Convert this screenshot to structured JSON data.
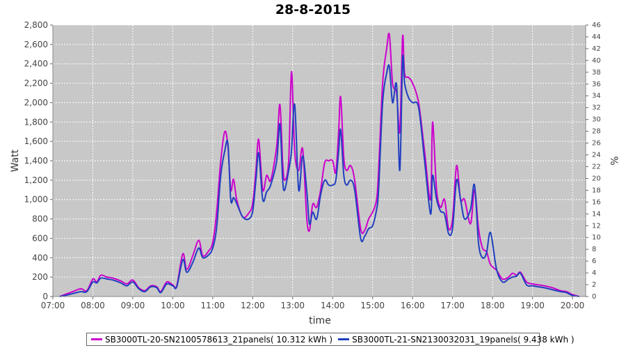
{
  "chart_data": {
    "type": "line",
    "title": "28-8-2015",
    "xlabel": "time",
    "ylabel": "Watt",
    "y2label": "%",
    "ylim": [
      0,
      2800
    ],
    "y2lim": [
      0,
      46
    ],
    "xlim": [
      7.0,
      20.33
    ],
    "grid": true,
    "legend_position": "bottom",
    "x_ticks": [
      "07:00",
      "08:00",
      "09:00",
      "10:00",
      "11:00",
      "12:00",
      "13:00",
      "14:00",
      "15:00",
      "16:00",
      "17:00",
      "18:00",
      "19:00",
      "20:00"
    ],
    "y_ticks": [
      "0",
      "200",
      "400",
      "600",
      "800",
      "1,000",
      "1,200",
      "1,400",
      "1,600",
      "1,800",
      "2,000",
      "2,200",
      "2,400",
      "2,600",
      "2,800"
    ],
    "y2_ticks": [
      "0",
      "2",
      "4",
      "6",
      "8",
      "10",
      "12",
      "14",
      "16",
      "18",
      "20",
      "22",
      "24",
      "26",
      "28",
      "30",
      "32",
      "34",
      "36",
      "38",
      "40",
      "42",
      "44",
      "46"
    ],
    "series": [
      {
        "name": "SB3000TL-20-SN2100578613_21panels( 10.312 kWh )",
        "color": "#cc00cc",
        "points": [
          [
            7.17,
            0
          ],
          [
            7.3,
            20
          ],
          [
            7.5,
            50
          ],
          [
            7.7,
            80
          ],
          [
            7.85,
            60
          ],
          [
            8.0,
            180
          ],
          [
            8.1,
            150
          ],
          [
            8.2,
            220
          ],
          [
            8.35,
            200
          ],
          [
            8.5,
            190
          ],
          [
            8.7,
            160
          ],
          [
            8.85,
            130
          ],
          [
            9.0,
            170
          ],
          [
            9.15,
            90
          ],
          [
            9.3,
            60
          ],
          [
            9.45,
            110
          ],
          [
            9.6,
            100
          ],
          [
            9.7,
            50
          ],
          [
            9.85,
            150
          ],
          [
            10.0,
            120
          ],
          [
            10.1,
            110
          ],
          [
            10.25,
            440
          ],
          [
            10.35,
            280
          ],
          [
            10.5,
            420
          ],
          [
            10.65,
            580
          ],
          [
            10.75,
            420
          ],
          [
            10.9,
            470
          ],
          [
            11.0,
            560
          ],
          [
            11.1,
            880
          ],
          [
            11.2,
            1400
          ],
          [
            11.3,
            1700
          ],
          [
            11.38,
            1550
          ],
          [
            11.45,
            1100
          ],
          [
            11.52,
            1210
          ],
          [
            11.6,
            1000
          ],
          [
            11.75,
            820
          ],
          [
            11.9,
            860
          ],
          [
            12.0,
            960
          ],
          [
            12.08,
            1300
          ],
          [
            12.15,
            1620
          ],
          [
            12.25,
            1100
          ],
          [
            12.35,
            1250
          ],
          [
            12.45,
            1200
          ],
          [
            12.6,
            1550
          ],
          [
            12.68,
            1980
          ],
          [
            12.75,
            1380
          ],
          [
            12.8,
            1200
          ],
          [
            12.9,
            1400
          ],
          [
            12.97,
            2320
          ],
          [
            13.05,
            1500
          ],
          [
            13.15,
            1300
          ],
          [
            13.25,
            1520
          ],
          [
            13.35,
            820
          ],
          [
            13.42,
            680
          ],
          [
            13.5,
            950
          ],
          [
            13.6,
            920
          ],
          [
            13.7,
            1100
          ],
          [
            13.8,
            1380
          ],
          [
            13.9,
            1400
          ],
          [
            14.0,
            1400
          ],
          [
            14.08,
            1280
          ],
          [
            14.15,
            1700
          ],
          [
            14.2,
            2060
          ],
          [
            14.28,
            1430
          ],
          [
            14.35,
            1300
          ],
          [
            14.45,
            1350
          ],
          [
            14.55,
            1200
          ],
          [
            14.7,
            700
          ],
          [
            14.8,
            680
          ],
          [
            14.9,
            800
          ],
          [
            15.0,
            870
          ],
          [
            15.1,
            1000
          ],
          [
            15.15,
            1300
          ],
          [
            15.25,
            2200
          ],
          [
            15.35,
            2550
          ],
          [
            15.42,
            2700
          ],
          [
            15.5,
            2200
          ],
          [
            15.6,
            2100
          ],
          [
            15.68,
            1700
          ],
          [
            15.75,
            2680
          ],
          [
            15.8,
            2300
          ],
          [
            15.9,
            2260
          ],
          [
            16.0,
            2200
          ],
          [
            16.15,
            2000
          ],
          [
            16.3,
            1500
          ],
          [
            16.45,
            1000
          ],
          [
            16.5,
            1800
          ],
          [
            16.6,
            1100
          ],
          [
            16.7,
            920
          ],
          [
            16.8,
            1000
          ],
          [
            16.9,
            700
          ],
          [
            17.0,
            800
          ],
          [
            17.1,
            1350
          ],
          [
            17.2,
            1000
          ],
          [
            17.3,
            1000
          ],
          [
            17.45,
            750
          ],
          [
            17.55,
            1100
          ],
          [
            17.65,
            700
          ],
          [
            17.75,
            500
          ],
          [
            17.85,
            460
          ],
          [
            17.95,
            330
          ],
          [
            18.1,
            270
          ],
          [
            18.25,
            180
          ],
          [
            18.4,
            200
          ],
          [
            18.5,
            240
          ],
          [
            18.6,
            220
          ],
          [
            18.7,
            250
          ],
          [
            18.85,
            150
          ],
          [
            19.0,
            130
          ],
          [
            19.15,
            120
          ],
          [
            19.3,
            110
          ],
          [
            19.5,
            90
          ],
          [
            19.7,
            60
          ],
          [
            19.85,
            50
          ],
          [
            20.0,
            20
          ],
          [
            20.17,
            0
          ]
        ]
      },
      {
        "name": "SB3000TL-21-SN2130032031_19panels( 9.438 kWh )",
        "color": "#1f3fbf",
        "points": [
          [
            7.17,
            0
          ],
          [
            7.3,
            10
          ],
          [
            7.5,
            30
          ],
          [
            7.7,
            50
          ],
          [
            7.85,
            50
          ],
          [
            8.0,
            150
          ],
          [
            8.1,
            140
          ],
          [
            8.2,
            190
          ],
          [
            8.35,
            180
          ],
          [
            8.5,
            170
          ],
          [
            8.7,
            140
          ],
          [
            8.85,
            110
          ],
          [
            9.0,
            150
          ],
          [
            9.15,
            80
          ],
          [
            9.3,
            50
          ],
          [
            9.45,
            100
          ],
          [
            9.6,
            90
          ],
          [
            9.7,
            40
          ],
          [
            9.85,
            130
          ],
          [
            10.0,
            110
          ],
          [
            10.1,
            100
          ],
          [
            10.25,
            380
          ],
          [
            10.35,
            250
          ],
          [
            10.5,
            350
          ],
          [
            10.65,
            500
          ],
          [
            10.75,
            400
          ],
          [
            10.9,
            430
          ],
          [
            11.0,
            500
          ],
          [
            11.1,
            720
          ],
          [
            11.2,
            1250
          ],
          [
            11.3,
            1500
          ],
          [
            11.38,
            1580
          ],
          [
            11.45,
            1000
          ],
          [
            11.52,
            1020
          ],
          [
            11.6,
            960
          ],
          [
            11.75,
            820
          ],
          [
            11.9,
            800
          ],
          [
            12.0,
            880
          ],
          [
            12.08,
            1200
          ],
          [
            12.15,
            1480
          ],
          [
            12.25,
            1000
          ],
          [
            12.35,
            1080
          ],
          [
            12.45,
            1150
          ],
          [
            12.6,
            1400
          ],
          [
            12.68,
            1780
          ],
          [
            12.75,
            1200
          ],
          [
            12.8,
            1100
          ],
          [
            12.9,
            1300
          ],
          [
            12.97,
            1500
          ],
          [
            13.05,
            1980
          ],
          [
            13.15,
            1100
          ],
          [
            13.25,
            1450
          ],
          [
            13.35,
            1100
          ],
          [
            13.42,
            750
          ],
          [
            13.5,
            870
          ],
          [
            13.6,
            800
          ],
          [
            13.7,
            1050
          ],
          [
            13.8,
            1200
          ],
          [
            13.9,
            1150
          ],
          [
            14.0,
            1150
          ],
          [
            14.08,
            1200
          ],
          [
            14.15,
            1500
          ],
          [
            14.2,
            1720
          ],
          [
            14.28,
            1250
          ],
          [
            14.35,
            1150
          ],
          [
            14.45,
            1200
          ],
          [
            14.55,
            1100
          ],
          [
            14.7,
            600
          ],
          [
            14.8,
            620
          ],
          [
            14.9,
            700
          ],
          [
            15.0,
            730
          ],
          [
            15.1,
            900
          ],
          [
            15.15,
            1100
          ],
          [
            15.25,
            2000
          ],
          [
            15.35,
            2300
          ],
          [
            15.42,
            2370
          ],
          [
            15.5,
            2000
          ],
          [
            15.6,
            2180
          ],
          [
            15.68,
            1300
          ],
          [
            15.75,
            2450
          ],
          [
            15.8,
            2200
          ],
          [
            15.9,
            2050
          ],
          [
            16.0,
            2000
          ],
          [
            16.15,
            1950
          ],
          [
            16.3,
            1400
          ],
          [
            16.45,
            850
          ],
          [
            16.5,
            1250
          ],
          [
            16.6,
            1000
          ],
          [
            16.7,
            880
          ],
          [
            16.8,
            850
          ],
          [
            16.9,
            650
          ],
          [
            17.0,
            700
          ],
          [
            17.1,
            1200
          ],
          [
            17.2,
            1000
          ],
          [
            17.3,
            800
          ],
          [
            17.45,
            900
          ],
          [
            17.55,
            1150
          ],
          [
            17.65,
            550
          ],
          [
            17.75,
            400
          ],
          [
            17.85,
            450
          ],
          [
            17.95,
            660
          ],
          [
            18.1,
            280
          ],
          [
            18.25,
            150
          ],
          [
            18.4,
            180
          ],
          [
            18.5,
            200
          ],
          [
            18.6,
            210
          ],
          [
            18.7,
            240
          ],
          [
            18.85,
            120
          ],
          [
            19.0,
            110
          ],
          [
            19.15,
            100
          ],
          [
            19.3,
            90
          ],
          [
            19.5,
            70
          ],
          [
            19.7,
            50
          ],
          [
            19.85,
            40
          ],
          [
            20.0,
            10
          ],
          [
            20.17,
            0
          ]
        ]
      }
    ]
  }
}
